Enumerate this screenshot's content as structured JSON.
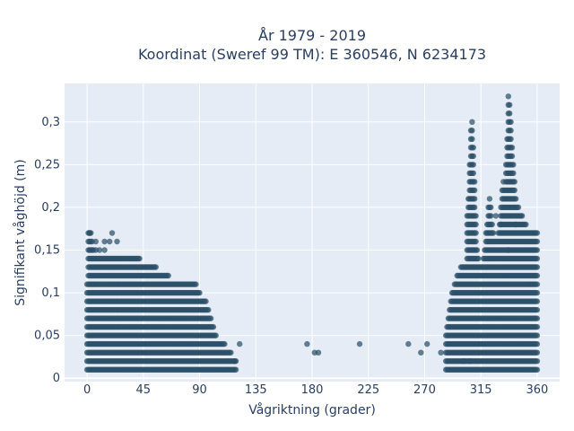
{
  "chart_data": {
    "type": "scatter",
    "title_lines": [
      "År 1979 - 2019",
      "Koordinat (Sweref 99 TM): E 360546, N 6234173"
    ],
    "xlabel": "Vågriktning (grader)",
    "ylabel": "Signifikant våghöjd (m)",
    "xlim": [
      -18,
      378
    ],
    "ylim": [
      -0.004,
      0.345
    ],
    "x_ticks": [
      0,
      45,
      90,
      135,
      180,
      225,
      270,
      315,
      360
    ],
    "x_tick_labels": [
      "0",
      "45",
      "90",
      "135",
      "180",
      "225",
      "270",
      "315",
      "360"
    ],
    "y_ticks": [
      0,
      0.05,
      0.1,
      0.15,
      0.2,
      0.25,
      0.3
    ],
    "y_tick_labels": [
      "0",
      "0,05",
      "0,1",
      "0,15",
      "0,2",
      "0,25",
      "0,3"
    ],
    "grid": true,
    "marker_color": "#2c5068",
    "background_color": "#e5ecf6",
    "clusters": [
      {
        "name": "east",
        "x_start": 0,
        "x_step": 1,
        "heights": [
          0.11,
          0.17,
          0.17,
          0.17,
          0.16,
          0.15,
          0.14,
          0.16,
          0.14,
          0.14,
          0.15,
          0.14,
          0.14,
          0.14,
          0.16,
          0.14,
          0.14,
          0.14,
          0.14,
          0.14,
          0.14,
          0.14,
          0.14,
          0.14,
          0.14,
          0.14,
          0.14,
          0.14,
          0.14,
          0.14,
          0.14,
          0.14,
          0.14,
          0.14,
          0.14,
          0.14,
          0.14,
          0.14,
          0.14,
          0.14,
          0.14,
          0.14,
          0.14,
          0.13,
          0.13,
          0.13,
          0.13,
          0.13,
          0.13,
          0.13,
          0.13,
          0.13,
          0.13,
          0.13,
          0.13,
          0.13,
          0.12,
          0.12,
          0.12,
          0.12,
          0.12,
          0.12,
          0.12,
          0.12,
          0.12,
          0.12,
          0.11,
          0.11,
          0.11,
          0.11,
          0.11,
          0.11,
          0.11,
          0.11,
          0.11,
          0.11,
          0.11,
          0.11,
          0.11,
          0.11,
          0.11,
          0.11,
          0.11,
          0.11,
          0.11,
          0.11,
          0.11,
          0.11,
          0.1,
          0.1,
          0.1,
          0.09,
          0.09,
          0.09,
          0.09,
          0.09,
          0.08,
          0.08,
          0.07,
          0.07,
          0.06,
          0.06,
          0.05,
          0.05,
          0.04,
          0.04,
          0.04,
          0.04,
          0.04,
          0.04,
          0.04,
          0.03,
          0.03,
          0.03,
          0.03,
          0.03,
          0.02,
          0.02,
          0.02,
          0.02
        ],
        "min": 0.01
      },
      {
        "name": "west",
        "x_start": 287,
        "x_step": 1,
        "heights": [
          0.05,
          0.06,
          0.07,
          0.08,
          0.09,
          0.1,
          0.1,
          0.11,
          0.11,
          0.12,
          0.12,
          0.12,
          0.13,
          0.13,
          0.13,
          0.13,
          0.13,
          0.19,
          0.21,
          0.25,
          0.29,
          0.3,
          0.27,
          0.23,
          0.19,
          0.15,
          0.14,
          0.13,
          0.13,
          0.13,
          0.14,
          0.15,
          0.17,
          0.18,
          0.2,
          0.21,
          0.2,
          0.18,
          0.17,
          0.16,
          0.16,
          0.16,
          0.17,
          0.18,
          0.2,
          0.22,
          0.23,
          0.22,
          0.25,
          0.28,
          0.33,
          0.32,
          0.3,
          0.27,
          0.25,
          0.23,
          0.21,
          0.2,
          0.2,
          0.19,
          0.19,
          0.19,
          0.18,
          0.18,
          0.18,
          0.17,
          0.17,
          0.17,
          0.17,
          0.17,
          0.17,
          0.17,
          0.17,
          0.17
        ],
        "min": 0.01
      }
    ],
    "sparse_points": [
      {
        "x": 2,
        "y": 0.17
      },
      {
        "x": 18,
        "y": 0.16
      },
      {
        "x": 20,
        "y": 0.17
      },
      {
        "x": 24,
        "y": 0.16
      },
      {
        "x": 118,
        "y": 0.02
      },
      {
        "x": 122,
        "y": 0.04
      },
      {
        "x": 176,
        "y": 0.04
      },
      {
        "x": 182,
        "y": 0.03
      },
      {
        "x": 185,
        "y": 0.03
      },
      {
        "x": 218,
        "y": 0.04
      },
      {
        "x": 257,
        "y": 0.04
      },
      {
        "x": 267,
        "y": 0.03
      },
      {
        "x": 272,
        "y": 0.04
      },
      {
        "x": 283,
        "y": 0.03
      },
      {
        "x": 301,
        "y": 0.02
      },
      {
        "x": 306,
        "y": 0.02
      },
      {
        "x": 327,
        "y": 0.19
      },
      {
        "x": 331,
        "y": 0.18
      },
      {
        "x": 337,
        "y": 0.15
      },
      {
        "x": 343,
        "y": 0.18
      }
    ]
  }
}
